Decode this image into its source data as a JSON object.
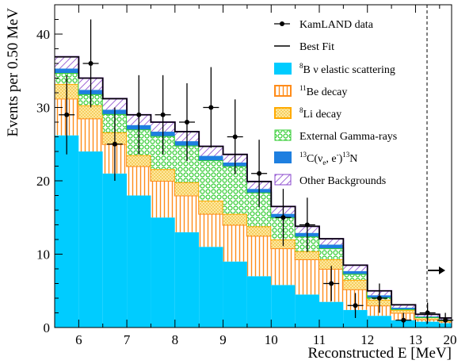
{
  "chart_data": {
    "type": "stacked-histogram",
    "xlabel": "Reconstructed E [MeV]",
    "ylabel": "Events per 0.50 MeV",
    "xlim": [
      5.5,
      13.75
    ],
    "ylim": [
      0,
      44
    ],
    "x_tick_labels": [
      "6",
      "7",
      "8",
      "9",
      "10",
      "11",
      "12",
      "13",
      "20"
    ],
    "y_ticks": [
      0,
      10,
      20,
      30,
      40
    ],
    "grid": false,
    "legend_position": "top-right",
    "bin_edges": [
      5.5,
      6.0,
      6.5,
      7.0,
      7.5,
      8.0,
      8.5,
      9.0,
      9.5,
      10.0,
      10.5,
      11.0,
      11.5,
      12.0,
      12.5,
      13.0,
      13.5,
      13.75
    ],
    "overflow_note": "last bin: 13.5–20 MeV, axis broken at dashed line",
    "series": [
      {
        "name": "8B ν elastic scattering",
        "color": "#00ccff",
        "values": [
          26.2,
          24.0,
          21.0,
          18.0,
          15.0,
          13.0,
          11.0,
          9.0,
          7.0,
          5.8,
          4.5,
          3.5,
          2.4,
          1.6,
          1.0,
          0.8,
          0.6
        ]
      },
      {
        "name": "11Be decay",
        "color": "#ff8c1a",
        "values": [
          5.0,
          4.5,
          4.0,
          4.0,
          5.0,
          5.0,
          4.5,
          5.0,
          5.5,
          5.0,
          4.8,
          4.5,
          2.8,
          1.4,
          1.0,
          0.3,
          0.2
        ]
      },
      {
        "name": "8Li decay",
        "color": "#ffcc33",
        "values": [
          2.0,
          1.8,
          1.6,
          1.5,
          1.6,
          1.8,
          1.8,
          1.5,
          1.3,
          1.2,
          1.1,
          1.3,
          1.3,
          0.8,
          0.4,
          0.3,
          0.2
        ]
      },
      {
        "name": "External Gamma-rays",
        "color": "#33cc33",
        "values": [
          1.5,
          1.5,
          2.5,
          3.5,
          4.5,
          5.0,
          5.5,
          6.5,
          4.6,
          3.0,
          2.0,
          1.5,
          0.8,
          0.3,
          0.1,
          0.0,
          0.0
        ]
      },
      {
        "name": "13C(νe, e-)13N",
        "color": "#1e7fe0",
        "values": [
          0.6,
          0.6,
          0.6,
          0.6,
          0.6,
          0.6,
          0.6,
          0.5,
          0.5,
          0.5,
          0.5,
          0.5,
          0.4,
          0.3,
          0.2,
          0.1,
          0.1
        ]
      },
      {
        "name": "Other Backgrounds",
        "color": "#8844cc",
        "values": [
          1.6,
          1.6,
          1.5,
          1.4,
          1.3,
          1.3,
          1.3,
          1.1,
          1.0,
          1.0,
          0.9,
          0.8,
          0.8,
          0.6,
          0.4,
          0.3,
          0.2
        ]
      }
    ],
    "best_fit": {
      "name": "Best Fit",
      "values": [
        36.9,
        34.0,
        31.2,
        29.0,
        28.0,
        26.7,
        24.7,
        23.6,
        19.9,
        16.5,
        13.8,
        12.1,
        8.5,
        5.0,
        3.1,
        1.8,
        1.3
      ]
    },
    "data": {
      "name": "KamLAND data",
      "x": [
        5.75,
        6.25,
        6.75,
        7.25,
        7.75,
        8.25,
        8.75,
        9.25,
        9.75,
        10.25,
        10.75,
        11.25,
        11.75,
        12.25,
        12.75,
        13.25,
        13.62
      ],
      "y": [
        29,
        36,
        25,
        29,
        29,
        28,
        30,
        26,
        21,
        15,
        14,
        6,
        3,
        4,
        1,
        2,
        1
      ],
      "err": [
        5.4,
        6.0,
        5.0,
        5.4,
        5.4,
        5.3,
        5.5,
        5.1,
        4.6,
        3.9,
        3.7,
        2.4,
        1.7,
        2.0,
        1.0,
        1.4,
        1.0
      ]
    }
  },
  "legend": {
    "data_label": "KamLAND data",
    "fit_label": "Best Fit",
    "b8_sup": "8",
    "b8_text": "B ν elastic scattering",
    "be11_sup": "11",
    "be11_text": "Be decay",
    "li8_sup": "8",
    "li8_text": "Li decay",
    "gamma_text": "External Gamma-rays",
    "c13_sup1": "13",
    "c13_a": "C(ν",
    "c13_sub_e": "e",
    "c13_b": ", e",
    "c13_sup_minus": "-",
    "c13_c": ")",
    "c13_sup2": "13",
    "c13_d": "N",
    "other_text": "Other Backgrounds"
  }
}
